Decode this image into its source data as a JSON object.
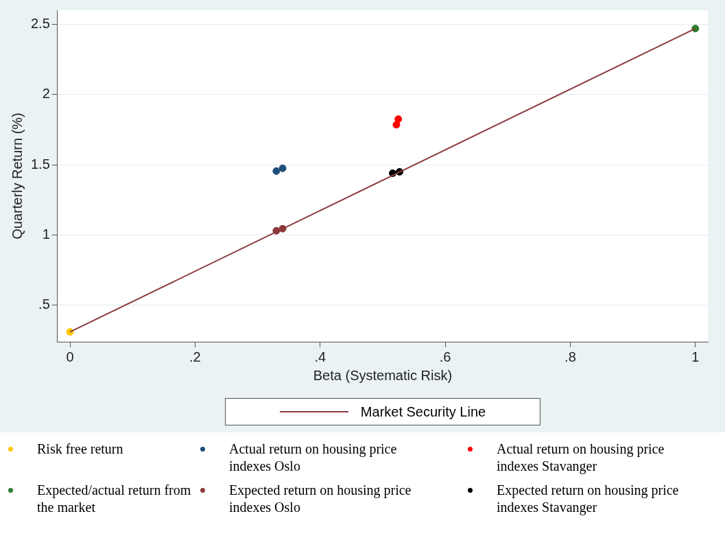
{
  "chart_data": {
    "type": "scatter",
    "xlabel": "Beta (Systematic Risk)",
    "ylabel": "Quarterly Return (%)",
    "xlim": [
      -0.02,
      1.02
    ],
    "xticks": [
      0,
      {
        "value": 0.2,
        "label": ".2"
      },
      {
        "value": 0.4,
        "label": ".4"
      },
      {
        "value": 0.6,
        "label": ".6"
      },
      {
        "value": 0.8,
        "label": ".8"
      },
      1
    ],
    "ylim": [
      0.24,
      2.6
    ],
    "yticks": [
      {
        "value": 0.5,
        "label": ".5"
      },
      1,
      1.5,
      2,
      2.5
    ],
    "grid": "y",
    "legend": "bottom",
    "marker": "circle",
    "series": [
      {
        "name": "Market Security Line",
        "type": "line",
        "color": "#8b3a3f",
        "x": [
          0,
          1
        ],
        "values": [
          0.31,
          2.47
        ],
        "marker": "none",
        "line_style": "solid"
      },
      {
        "name": "Risk free return",
        "color": "#ffc800",
        "x": [
          0
        ],
        "values": [
          0.31
        ]
      },
      {
        "name": "Actual return on housing price indexes Oslo",
        "color": "#1f4e79",
        "x": [
          0.33,
          0.34
        ],
        "values": [
          1.455,
          1.475
        ]
      },
      {
        "name": "Actual return on housing price indexes Stavanger",
        "color": "#ff0000",
        "x": [
          0.522,
          0.525
        ],
        "values": [
          1.785,
          1.825
        ]
      },
      {
        "name": "Expected/actual return from the market",
        "color": "#2e7d2e",
        "x": [
          1
        ],
        "values": [
          2.47
        ]
      },
      {
        "name": "Expected return on housing price indexes Oslo",
        "color": "#8b3a3a",
        "x": [
          0.33,
          0.34
        ],
        "values": [
          1.03,
          1.045
        ]
      },
      {
        "name": "Expected return on housing price indexes Stavanger",
        "color": "#000000",
        "x": [
          0.516,
          0.527
        ],
        "values": [
          1.44,
          1.45
        ]
      }
    ]
  }
}
